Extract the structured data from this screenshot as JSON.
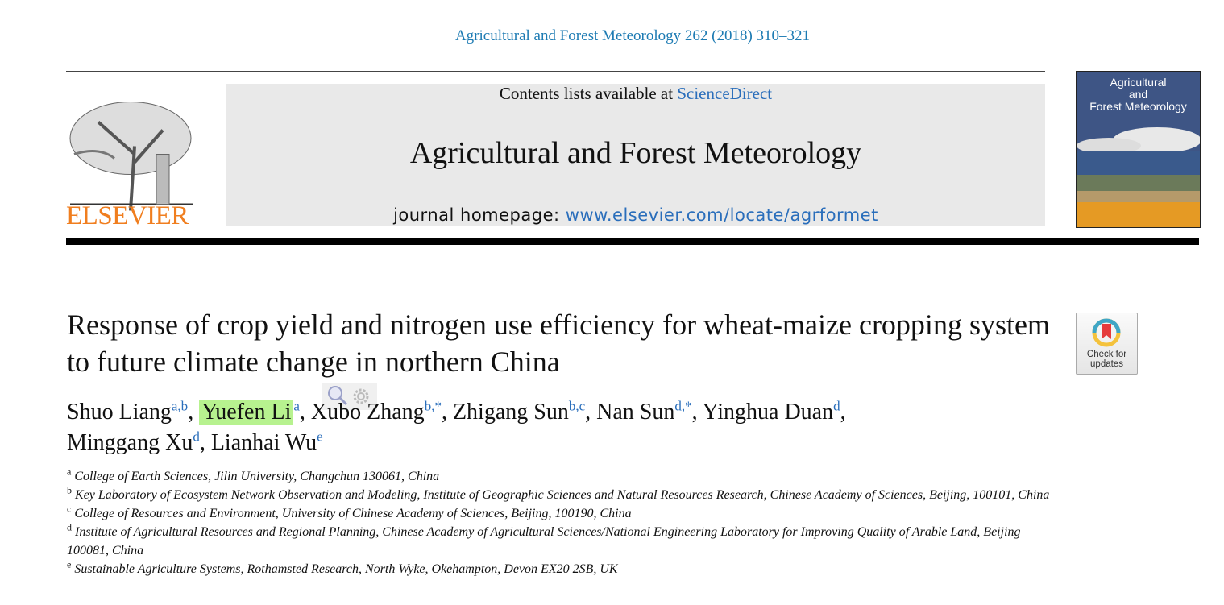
{
  "header": {
    "citation": "Agricultural and Forest Meteorology 262 (2018) 310–321",
    "contents_prefix": "Contents lists available at",
    "contents_link": "ScienceDirect",
    "journal_title": "Agricultural and Forest Meteorology",
    "homepage_prefix": "journal homepage:",
    "homepage_link": "www.elsevier.com/locate/agrformet",
    "publisher_logo": "ELSEVIER",
    "cover": {
      "line1": "Agricultural",
      "line2": "and",
      "line3": "Forest Meteorology"
    }
  },
  "article": {
    "title": "Response of crop yield and nitrogen use efficiency for wheat-maize cropping system to future climate change in northern China",
    "check_updates": {
      "line1": "Check for",
      "line2": "updates"
    },
    "authors": [
      {
        "name": "Shuo Liang",
        "sup": "a,b",
        "star": ""
      },
      {
        "name": "Yuefen Li",
        "sup": "a",
        "star": "",
        "highlighted": true
      },
      {
        "name": "Xubo Zhang",
        "sup": "b,",
        "star": "*"
      },
      {
        "name": "Zhigang Sun",
        "sup": "b,c",
        "star": ""
      },
      {
        "name": "Nan Sun",
        "sup": "d,",
        "star": "*"
      },
      {
        "name": "Yinghua Duan",
        "sup": "d",
        "star": ""
      },
      {
        "name": "Minggang Xu",
        "sup": "d",
        "star": ""
      },
      {
        "name": "Lianhai Wu",
        "sup": "e",
        "star": ""
      }
    ],
    "affiliations": [
      {
        "key": "a",
        "text": "College of Earth Sciences, Jilin University, Changchun 130061, China"
      },
      {
        "key": "b",
        "text": "Key Laboratory of Ecosystem Network Observation and Modeling, Institute of Geographic Sciences and Natural Resources Research, Chinese Academy of Sciences, Beijing, 100101, China"
      },
      {
        "key": "c",
        "text": "College of Resources and Environment, University of Chinese Academy of Sciences, Beijing, 100190, China"
      },
      {
        "key": "d",
        "text": "Institute of Agricultural Resources and Regional Planning, Chinese Academy of Agricultural Sciences/National Engineering Laboratory for Improving Quality of Arable Land, Beijing 100081, China"
      },
      {
        "key": "e",
        "text": "Sustainable Agriculture Systems, Rothamsted Research, North Wyke, Okehampton, Devon EX20 2SB, UK"
      }
    ]
  },
  "colors": {
    "link": "#2a6ebb",
    "citation": "#1d7bb3",
    "publisher_orange": "#f07e1f",
    "highlight": "#b7f28f"
  }
}
